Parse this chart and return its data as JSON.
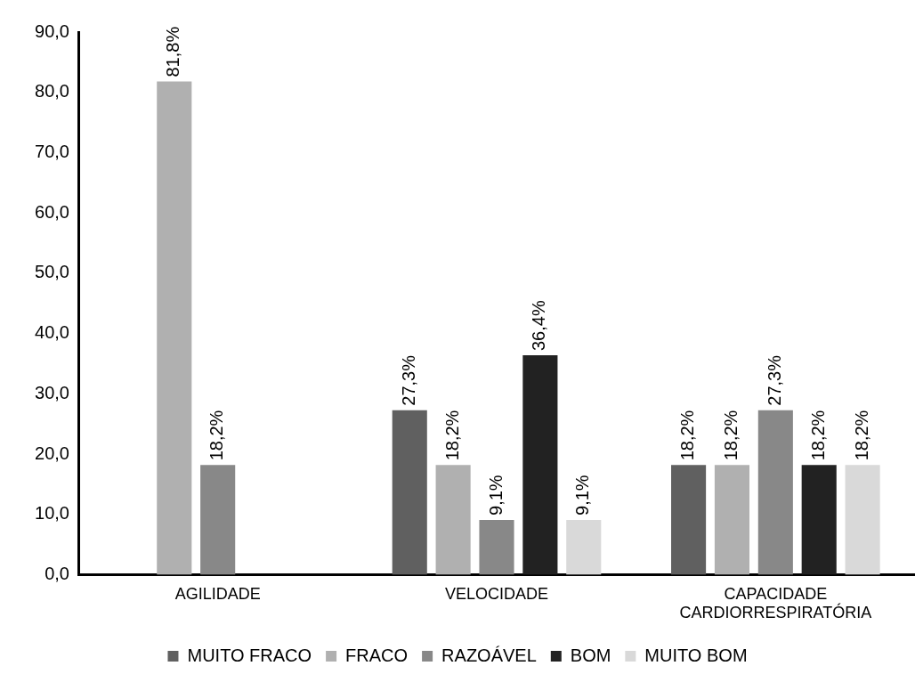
{
  "chart_data": {
    "type": "bar",
    "categories": [
      "AGILIDADE",
      "VELOCIDADE",
      "CAPACIDADE CARDIORRESPIRATÓRIA"
    ],
    "series": [
      {
        "name": "MUITO FRACO",
        "color": "#606060",
        "values": [
          null,
          27.3,
          18.2
        ],
        "value_labels": [
          null,
          "27,3%",
          "18,2%"
        ]
      },
      {
        "name": "FRACO",
        "color": "#b0b0b0",
        "values": [
          81.8,
          18.2,
          18.2
        ],
        "value_labels": [
          "81,8%",
          "18,2%",
          "18,2%"
        ]
      },
      {
        "name": "RAZOÁVEL",
        "color": "#888888",
        "values": [
          18.2,
          9.1,
          27.3
        ],
        "value_labels": [
          "18,2%",
          "9,1%",
          "27,3%"
        ]
      },
      {
        "name": "BOM",
        "color": "#222222",
        "values": [
          null,
          36.4,
          18.2
        ],
        "value_labels": [
          null,
          "36,4%",
          "18,2%"
        ]
      },
      {
        "name": "MUITO BOM",
        "color": "#d9d9d9",
        "values": [
          null,
          9.1,
          18.2
        ],
        "value_labels": [
          null,
          "9,1%",
          "18,2%"
        ]
      }
    ],
    "ylim": [
      0,
      90
    ],
    "yticks": [
      {
        "value": 0,
        "label": "0,0"
      },
      {
        "value": 10,
        "label": "10,0"
      },
      {
        "value": 20,
        "label": "20,0"
      },
      {
        "value": 30,
        "label": "30,0"
      },
      {
        "value": 40,
        "label": "40,0"
      },
      {
        "value": 50,
        "label": "50,0"
      },
      {
        "value": 60,
        "label": "60,0"
      },
      {
        "value": 70,
        "label": "70,0"
      },
      {
        "value": 80,
        "label": "80,0"
      },
      {
        "value": 90,
        "label": "90,0"
      }
    ],
    "grid": false,
    "legend": "bottom"
  }
}
